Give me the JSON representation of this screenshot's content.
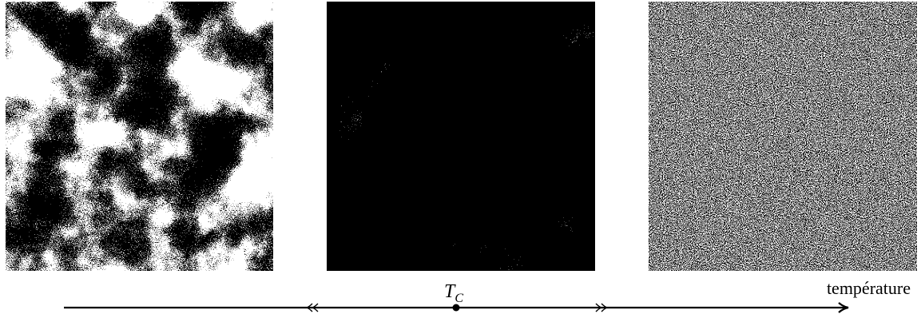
{
  "axis": {
    "label": "température",
    "critical_point": {
      "symbol": "T",
      "subscript": "C"
    }
  }
}
